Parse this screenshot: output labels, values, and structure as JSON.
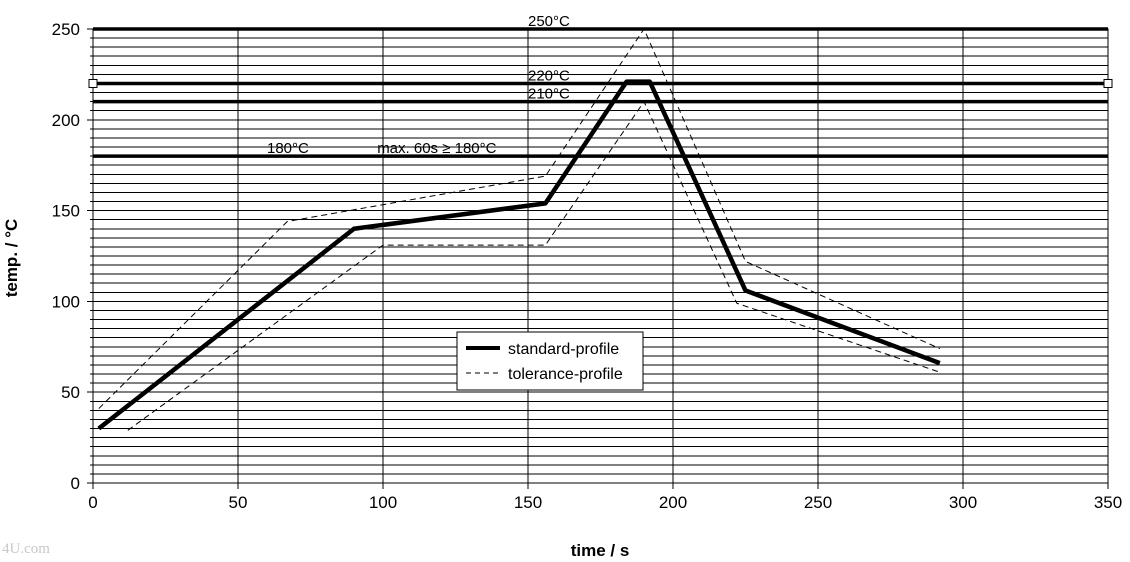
{
  "watermark": "4U.com",
  "chart_data": {
    "type": "line",
    "xlabel": "time / s",
    "ylabel": "temp. / °C",
    "xlim": [
      0,
      350
    ],
    "ylim": [
      0,
      250
    ],
    "x_ticks": [
      "0",
      "50",
      "100",
      "150",
      "200",
      "250",
      "300",
      "350"
    ],
    "y_ticks": [
      "0",
      "50",
      "100",
      "150",
      "200",
      "250"
    ],
    "grid": {
      "x_major": 50,
      "y_minor": 5
    },
    "legend_position": "center",
    "series": [
      {
        "name": "standard-profile",
        "style": "solid-thick",
        "color": "#000000",
        "x": [
          2,
          90,
          156,
          184,
          192,
          225,
          292
        ],
        "y": [
          30,
          140,
          154,
          221,
          221,
          106,
          66
        ]
      },
      {
        "name": "tolerance-profile",
        "style": "dashed",
        "color": "#000000",
        "x": [
          2,
          67,
          156,
          190,
          225,
          292
        ],
        "y": [
          41,
          144,
          169,
          250,
          122,
          74
        ]
      },
      {
        "name": "tolerance-profile",
        "style": "dashed",
        "color": "#000000",
        "x": [
          12,
          100,
          156,
          190,
          222,
          292
        ],
        "y": [
          29,
          131,
          131,
          210,
          99,
          61
        ]
      }
    ],
    "reference_lines": [
      {
        "y": 250,
        "label": "250°C",
        "label_x": 150
      },
      {
        "y": 220,
        "label": "220°C",
        "label_x": 150
      },
      {
        "y": 210,
        "label": "210°C",
        "label_x": 150
      },
      {
        "y": 180,
        "label": "180°C",
        "label_x": 60
      }
    ],
    "annotations": [
      {
        "text": "max. 60s ≥ 180°C",
        "x": 98,
        "y": 180
      }
    ]
  }
}
